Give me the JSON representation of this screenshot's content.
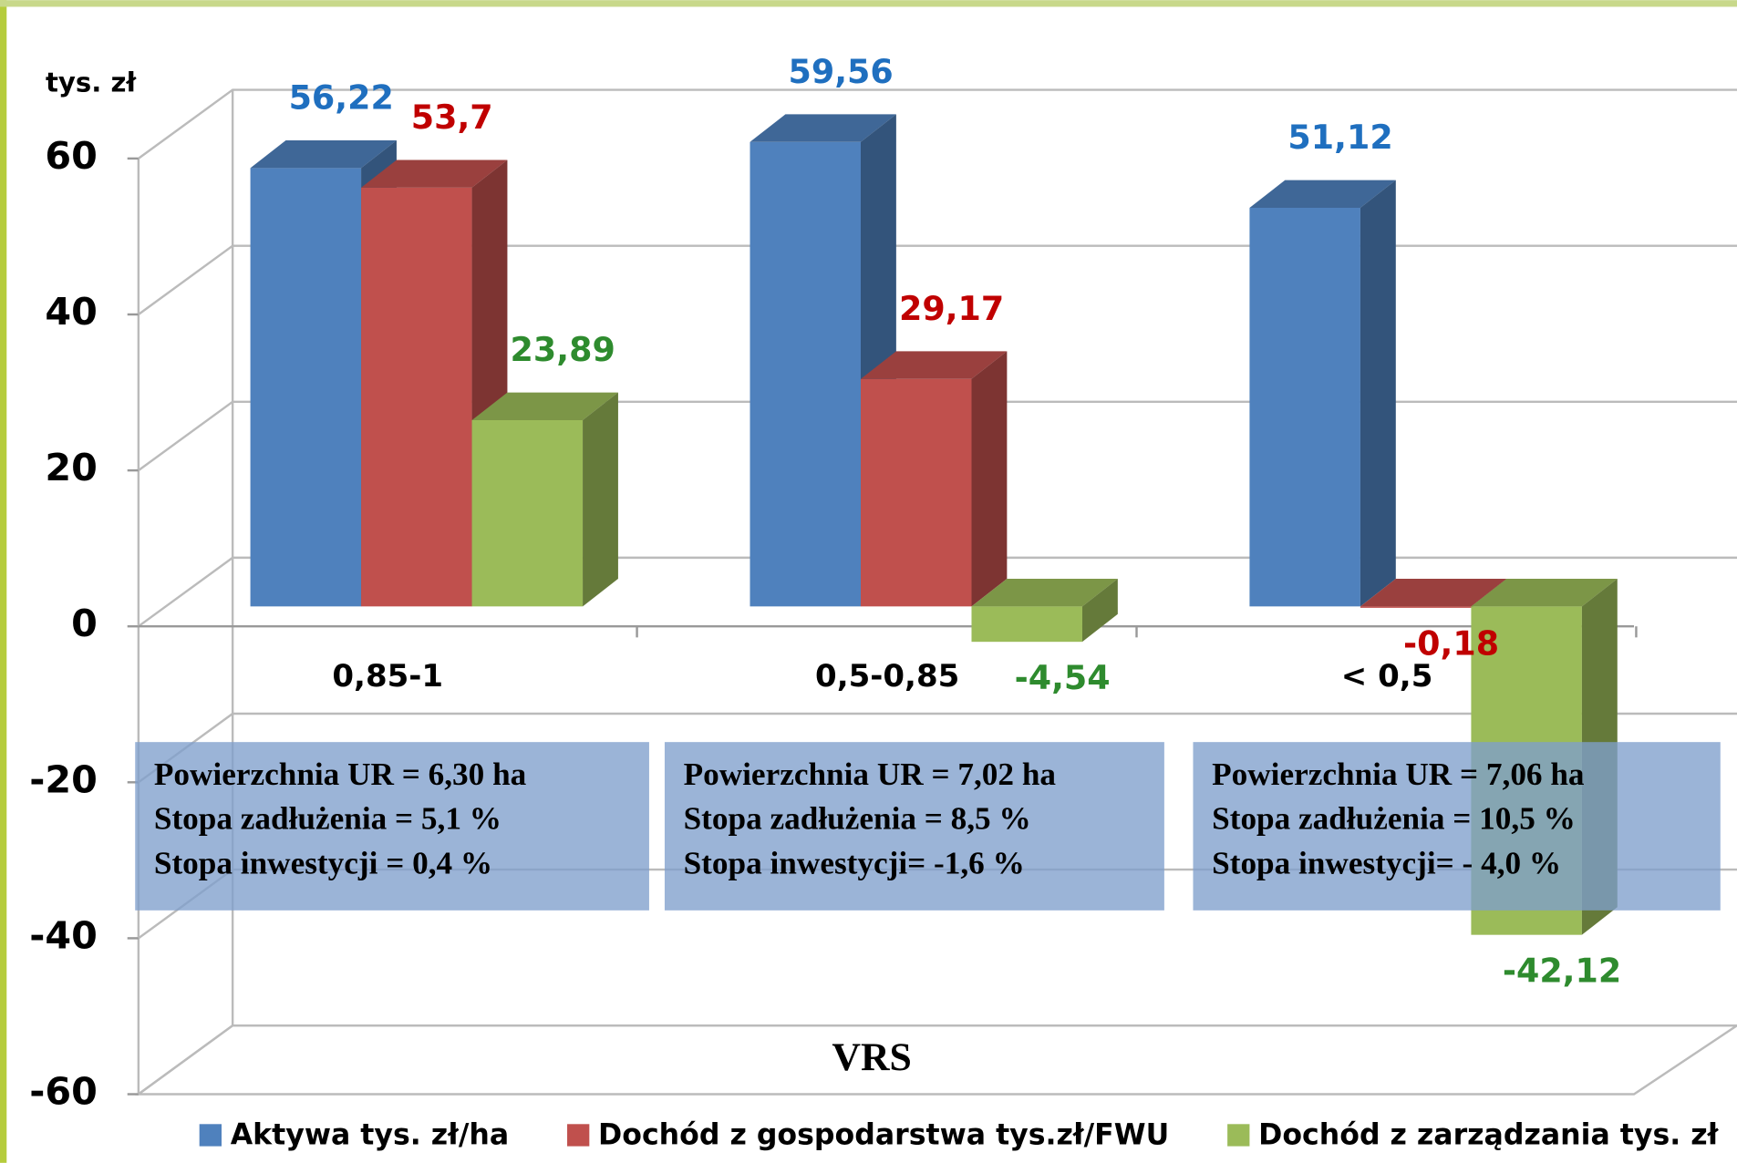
{
  "chart_data": {
    "type": "bar3d",
    "y_label": "tys. zł",
    "x_label": "VRS",
    "categories": [
      "0,85-1",
      "0,5-0,85",
      "< 0,5"
    ],
    "series": [
      {
        "name": "Aktywa tys. zł/ha",
        "color": "#4f81bd",
        "label_color": "#1f6fbf",
        "values": [
          56.22,
          59.56,
          51.12
        ],
        "value_labels": [
          "56,22",
          "59,56",
          "51,12"
        ]
      },
      {
        "name": "Dochód z gospodarstwa tys.zł/FWU",
        "color": "#c0504d",
        "label_color": "#c00000",
        "values": [
          53.7,
          29.17,
          -0.18
        ],
        "value_labels": [
          "53,7",
          "29,17",
          "-0,18"
        ]
      },
      {
        "name": "Dochód z zarządzania tys. zł",
        "color": "#9bbb59",
        "label_color": "#2e8b2e",
        "values": [
          23.89,
          -4.54,
          -42.12
        ],
        "value_labels": [
          "23,89",
          "-4,54",
          "-42,12"
        ]
      }
    ],
    "ylim": [
      -60,
      60
    ],
    "yticks": [
      -60,
      -40,
      -20,
      0,
      20,
      40,
      60
    ],
    "grid": true,
    "annotations": [
      [
        "Powierzchnia  UR = 6,30 ha",
        "Stopa zadłużenia  = 5,1 %",
        "Stopa inwestycji = 0,4 %"
      ],
      [
        "Powierzchnia  UR = 7,02 ha",
        "Stopa zadłużenia  = 8,5 %",
        "Stopa inwestycji= -1,6 %"
      ],
      [
        "Powierzchnia  UR = 7,06 ha",
        "Stopa zadłużenia  = 10,5 %",
        "Stopa inwestycji= - 4,0 %"
      ]
    ],
    "legend": "bottom"
  }
}
